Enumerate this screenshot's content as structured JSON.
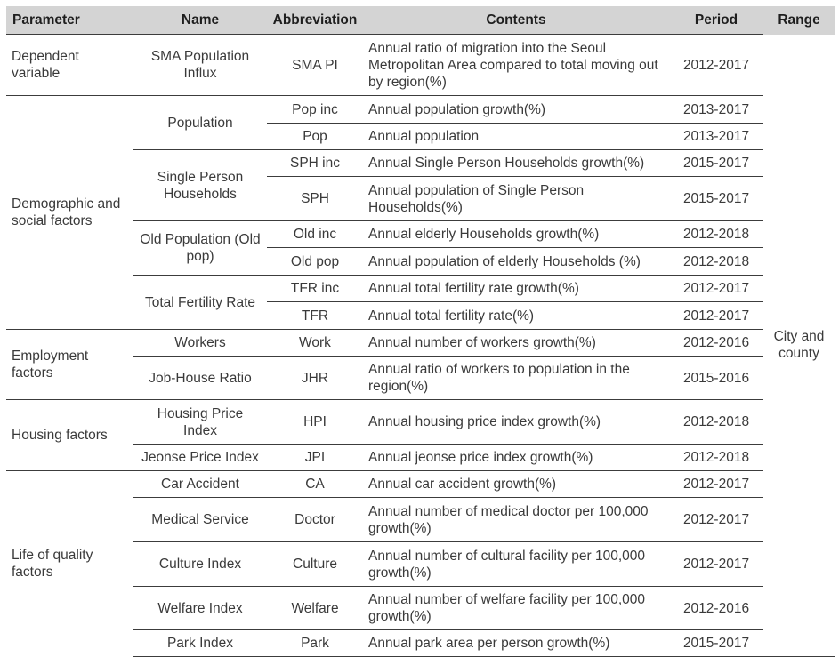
{
  "headers": {
    "parameter": "Parameter",
    "name": "Name",
    "abbreviation": "Abbreviation",
    "contents": "Contents",
    "period": "Period",
    "range": "Range"
  },
  "groups": {
    "dependent": "Dependent variable",
    "demographic": "Demographic and social factors",
    "employment": "Employment factors",
    "housing": "Housing factors",
    "life": "Life of quality factors"
  },
  "names": {
    "sma_pi": "SMA Population Influx",
    "population": "Population",
    "sph": "Single Person Households",
    "old": "Old Population (Old pop)",
    "tfr": "Total Fertility Rate",
    "workers": "Workers",
    "jhr": "Job-House Ratio",
    "hpi": "Housing Price Index",
    "jpi": "Jeonse Price Index",
    "ca": "Car Accident",
    "doctor": "Medical Service",
    "culture": "Culture Index",
    "welfare": "Welfare Index",
    "park": "Park Index"
  },
  "rows": [
    {
      "abbr": "SMA PI",
      "contents": "Annual ratio of migration into the Seoul Metropolitan Area compared to total moving out by region(%)",
      "period": "2012-2017"
    },
    {
      "abbr": "Pop inc",
      "contents": "Annual population growth(%)",
      "period": "2013-2017"
    },
    {
      "abbr": "Pop",
      "contents": "Annual population",
      "period": "2013-2017"
    },
    {
      "abbr": "SPH inc",
      "contents": "Annual Single Person Households growth(%)",
      "period": "2015-2017"
    },
    {
      "abbr": "SPH",
      "contents": "Annual population of Single Person Households(%)",
      "period": "2015-2017"
    },
    {
      "abbr": "Old inc",
      "contents": "Annual elderly Households growth(%)",
      "period": "2012-2018"
    },
    {
      "abbr": "Old pop",
      "contents": "Annual population of elderly Households (%)",
      "period": "2012-2018"
    },
    {
      "abbr": "TFR inc",
      "contents": "Annual total fertility rate growth(%)",
      "period": "2012-2017"
    },
    {
      "abbr": "TFR",
      "contents": "Annual total fertility rate(%)",
      "period": "2012-2017"
    },
    {
      "abbr": "Work",
      "contents": "Annual number of workers growth(%)",
      "period": "2012-2016"
    },
    {
      "abbr": "JHR",
      "contents": "Annual ratio of workers to population in the region(%)",
      "period": "2015-2016"
    },
    {
      "abbr": "HPI",
      "contents": "Annual housing price index growth(%)",
      "period": "2012-2018"
    },
    {
      "abbr": "JPI",
      "contents": "Annual jeonse price index growth(%)",
      "period": "2012-2018"
    },
    {
      "abbr": "CA",
      "contents": "Annual car accident growth(%)",
      "period": "2012-2017"
    },
    {
      "abbr": "Doctor",
      "contents": "Annual number of medical doctor per 100,000 growth(%)",
      "period": "2012-2017"
    },
    {
      "abbr": "Culture",
      "contents": "Annual number of cultural facility per 100,000 growth(%)",
      "period": "2012-2017"
    },
    {
      "abbr": "Welfare",
      "contents": "Annual number of welfare facility per 100,000 growth(%)",
      "period": "2012-2016"
    },
    {
      "abbr": "Park",
      "contents": "Annual park area per person growth(%)",
      "period": "2015-2017"
    }
  ],
  "range": "City and county"
}
